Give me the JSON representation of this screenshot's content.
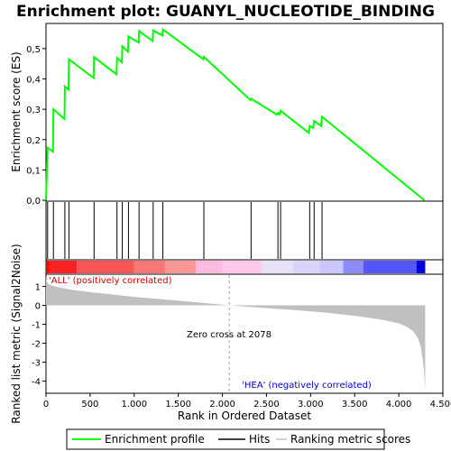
{
  "title": "Enrichment plot: GUANYL_NUCLEOTIDE_BINDING",
  "colors": {
    "enrichment_line": "#00ff00",
    "hits": "#000000",
    "ranking_fill": "#c0c0c0",
    "positive_label": "#cc0000",
    "negative_label": "#0000cc",
    "zero_cross_line": "#a0a0a0"
  },
  "chart_data": [
    {
      "type": "line",
      "panel": "enrichment-profile",
      "ylabel": "Enrichment score (ES)",
      "xlim": [
        0,
        4500
      ],
      "ylim": [
        0,
        0.58
      ],
      "yticks": [
        0.0,
        0.1,
        0.2,
        0.3,
        0.4,
        0.5
      ],
      "ytick_labels": [
        "0,0",
        "0,1",
        "0,2",
        "0,3",
        "0,4",
        "0,5"
      ],
      "series": [
        {
          "name": "Enrichment profile",
          "x": [
            0,
            18,
            80,
            84,
            210,
            214,
            255,
            260,
            540,
            545,
            800,
            805,
            860,
            865,
            930,
            935,
            1050,
            1055,
            1210,
            1215,
            1320,
            1325,
            1785,
            1790,
            2320,
            2325,
            2620,
            2630,
            2650,
            2660,
            2980,
            2990,
            3030,
            3040,
            3120,
            3130,
            4290
          ],
          "y": [
            0.0,
            0.173,
            0.16,
            0.3,
            0.268,
            0.375,
            0.365,
            0.465,
            0.403,
            0.472,
            0.415,
            0.47,
            0.455,
            0.508,
            0.49,
            0.54,
            0.52,
            0.558,
            0.525,
            0.56,
            0.543,
            0.563,
            0.465,
            0.473,
            0.33,
            0.335,
            0.282,
            0.288,
            0.283,
            0.295,
            0.222,
            0.245,
            0.238,
            0.262,
            0.245,
            0.275,
            0.0
          ]
        }
      ]
    },
    {
      "type": "scatter",
      "panel": "hits",
      "legend_label": "Hits",
      "x": [
        18,
        84,
        214,
        260,
        545,
        805,
        865,
        935,
        1055,
        1215,
        1325,
        1790,
        2325,
        2630,
        2660,
        2990,
        3040,
        3130
      ]
    },
    {
      "type": "heatmap",
      "panel": "rank-color-bar",
      "xlim": [
        0,
        4300
      ],
      "segments": [
        {
          "from": 0,
          "to": 40,
          "color": "#ff0000"
        },
        {
          "from": 40,
          "to": 350,
          "color": "#ff2222"
        },
        {
          "from": 350,
          "to": 1000,
          "color": "#ff5555"
        },
        {
          "from": 1000,
          "to": 1350,
          "color": "#ff7777"
        },
        {
          "from": 1350,
          "to": 1700,
          "color": "#ff9999"
        },
        {
          "from": 1700,
          "to": 2000,
          "color": "#ffbbdd"
        },
        {
          "from": 2000,
          "to": 2450,
          "color": "#ffc8e8"
        },
        {
          "from": 2450,
          "to": 2800,
          "color": "#e8e0f4"
        },
        {
          "from": 2800,
          "to": 3100,
          "color": "#d8d4f8"
        },
        {
          "from": 3100,
          "to": 3370,
          "color": "#c8c8ff"
        },
        {
          "from": 3370,
          "to": 3600,
          "color": "#8c8cff"
        },
        {
          "from": 3600,
          "to": 4200,
          "color": "#5555ff"
        },
        {
          "from": 4200,
          "to": 4300,
          "color": "#0000dd"
        }
      ]
    },
    {
      "type": "area",
      "panel": "ranked-list-metric",
      "legend_label": "Ranking metric scores",
      "xlabel": "Rank in Ordered Dataset",
      "ylabel": "Ranked list metric (Signal2Noise)",
      "xlim": [
        0,
        4500
      ],
      "ylim": [
        -4.6,
        1.6
      ],
      "xticks": [
        0,
        500,
        1000,
        1500,
        2000,
        2500,
        3000,
        3500,
        4000,
        4500
      ],
      "xtick_labels": [
        "0",
        "500",
        "1.000",
        "1.500",
        "2.000",
        "2.500",
        "3.000",
        "3.500",
        "4.000",
        "4.500"
      ],
      "yticks": [
        -4,
        -3,
        -2,
        -1,
        0,
        1
      ],
      "ytick_labels": [
        "-4",
        "-3",
        "-2",
        "-1",
        "0",
        "1"
      ],
      "x": [
        0,
        3,
        20,
        60,
        150,
        300,
        500,
        750,
        1000,
        1300,
        1600,
        1900,
        2078,
        2300,
        2600,
        2900,
        3200,
        3500,
        3800,
        4000,
        4100,
        4170,
        4220,
        4250,
        4270,
        4285,
        4295,
        4300
      ],
      "y": [
        1.6,
        1.35,
        1.15,
        1.05,
        0.95,
        0.82,
        0.7,
        0.58,
        0.45,
        0.33,
        0.21,
        0.08,
        0.0,
        -0.08,
        -0.18,
        -0.28,
        -0.4,
        -0.55,
        -0.75,
        -0.95,
        -1.15,
        -1.4,
        -1.75,
        -2.2,
        -2.8,
        -3.4,
        -4.2,
        -4.5
      ],
      "zero_cross": 2078,
      "annotations": {
        "positive": "'ALL' (positively correlated)",
        "negative": "'HEA' (negatively correlated)",
        "zero_cross": "Zero cross at 2078"
      }
    }
  ],
  "legend": {
    "items": [
      {
        "label": "Enrichment profile"
      },
      {
        "label": "Hits"
      },
      {
        "label": "Ranking metric scores"
      }
    ]
  }
}
